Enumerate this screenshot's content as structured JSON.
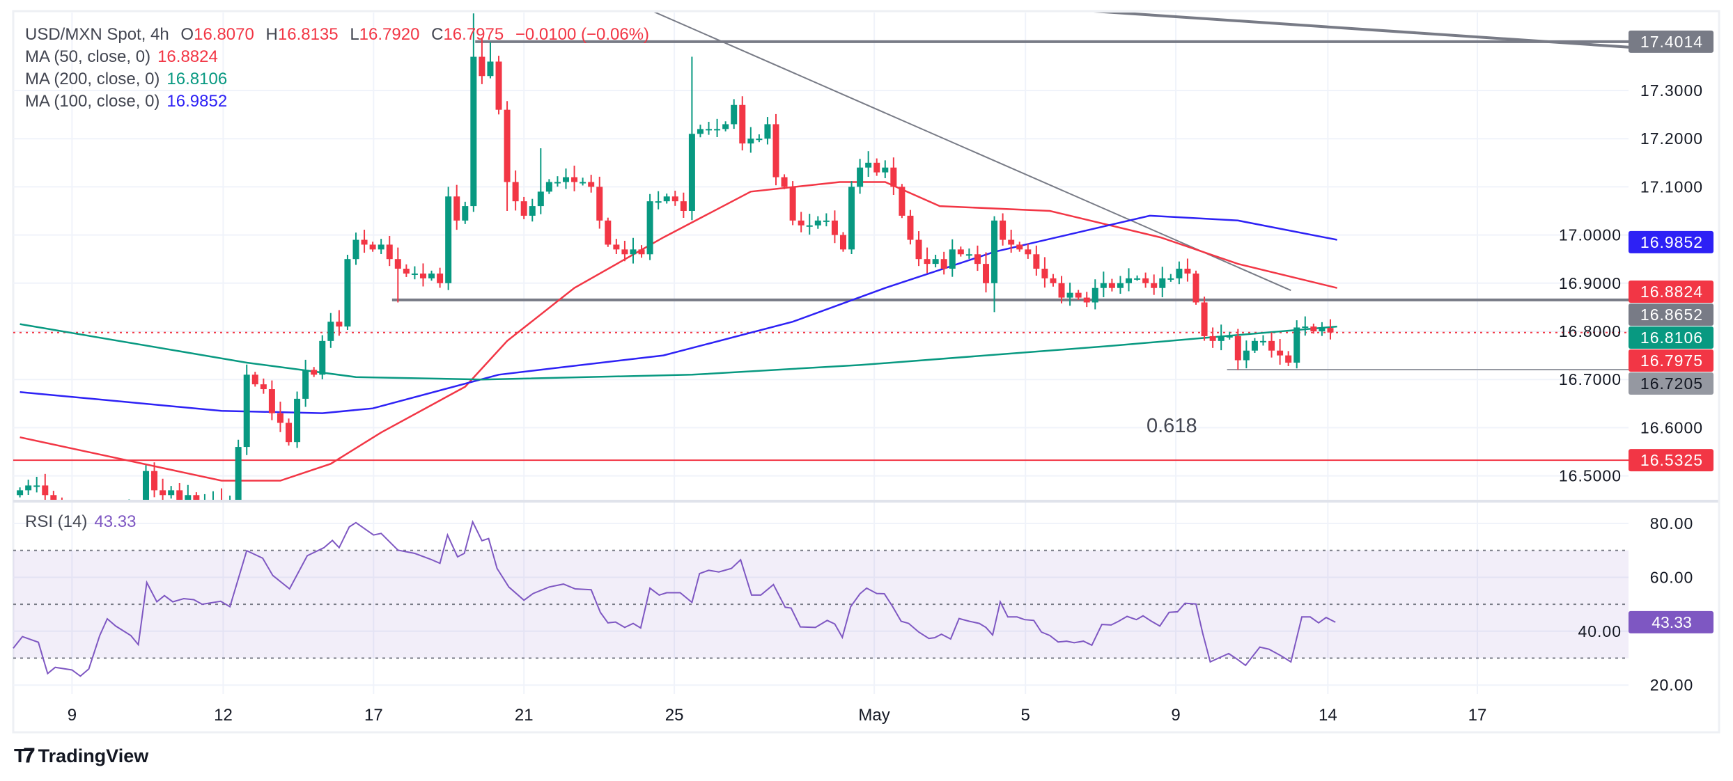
{
  "header": {
    "symbol": "USD/MXN Spot, 4h",
    "o_label": "O",
    "o": "16.8070",
    "h_label": "H",
    "h": "16.8135",
    "l_label": "L",
    "l": "16.7920",
    "c_label": "C",
    "c": "16.7975",
    "change": "−0.0100 (−0.06%)"
  },
  "indicators": [
    {
      "label": "MA (50, close, 0)",
      "value": "16.8824",
      "color": "#f23645"
    },
    {
      "label": "MA (200, close, 0)",
      "value": "16.8106",
      "color": "#089981"
    },
    {
      "label": "MA (100, close, 0)",
      "value": "16.9852",
      "color": "#2d21f5"
    }
  ],
  "rsi_legend": {
    "label": "RSI (14)",
    "value": "43.33"
  },
  "fib_label": "0.618",
  "branding": {
    "name": "TradingView"
  },
  "colors": {
    "up": "#089981",
    "down": "#f23645",
    "ma50": "#f23645",
    "ma100": "#2d21f5",
    "ma200": "#089981",
    "rsi": "#7e57c2",
    "drawing": "#787b86"
  },
  "chart_data": [
    {
      "type": "candlestick",
      "title": "USD/MXN Spot, 4h",
      "ylim": [
        16.45,
        17.47
      ],
      "y_ticks": [
        "17.3000",
        "17.2000",
        "17.1000",
        "17.0000",
        "16.9000",
        "16.8000",
        "16.7000",
        "16.6000",
        "16.5000"
      ],
      "x_ticks": [
        {
          "label": "9",
          "bar": 6.2
        },
        {
          "label": "12",
          "bar": 24.2
        },
        {
          "label": "17",
          "bar": 42.1
        },
        {
          "label": "21",
          "bar": 60
        },
        {
          "label": "25",
          "bar": 77.9
        },
        {
          "label": "May",
          "bar": 101.7
        },
        {
          "label": "5",
          "bar": 119.7
        },
        {
          "label": "9",
          "bar": 137.6
        },
        {
          "label": "14",
          "bar": 155.7
        },
        {
          "label": "17",
          "bar": 173.5
        }
      ],
      "close": [
        16.47,
        16.48,
        16.48,
        16.46,
        16.44,
        16.4,
        16.38,
        16.36,
        16.35,
        16.37,
        16.4,
        16.42,
        16.41,
        16.43,
        16.44,
        16.51,
        16.47,
        16.46,
        16.47,
        16.45,
        16.46,
        16.44,
        16.45,
        16.45,
        16.44,
        16.45,
        16.56,
        16.71,
        16.69,
        16.68,
        16.63,
        16.61,
        16.57,
        16.66,
        16.72,
        16.71,
        16.78,
        16.82,
        16.81,
        16.95,
        16.99,
        16.98,
        16.97,
        16.98,
        16.95,
        16.93,
        16.92,
        16.92,
        16.91,
        16.92,
        16.9,
        17.08,
        17.03,
        17.06,
        17.37,
        17.33,
        17.36,
        17.26,
        17.11,
        17.07,
        17.04,
        17.06,
        17.09,
        17.11,
        17.11,
        17.12,
        17.11,
        17.11,
        17.1,
        17.03,
        16.98,
        16.97,
        16.96,
        16.97,
        16.96,
        17.07,
        17.07,
        17.08,
        17.07,
        17.05,
        17.21,
        17.22,
        17.22,
        17.22,
        17.23,
        17.27,
        17.19,
        17.2,
        17.2,
        17.23,
        17.12,
        17.1,
        17.03,
        17.02,
        17.02,
        17.03,
        17.03,
        17.0,
        16.97,
        17.1,
        17.14,
        17.15,
        17.13,
        17.14,
        17.1,
        17.04,
        16.99,
        16.95,
        16.94,
        16.95,
        16.93,
        16.97,
        16.96,
        16.96,
        16.94,
        16.9,
        17.03,
        16.99,
        16.98,
        16.97,
        16.96,
        16.93,
        16.91,
        16.9,
        16.87,
        16.88,
        16.87,
        16.86,
        16.89,
        16.9,
        16.89,
        16.9,
        16.91,
        16.91,
        16.9,
        16.89,
        16.91,
        16.91,
        16.93,
        16.92,
        16.86,
        16.79,
        16.78,
        16.79,
        16.79,
        16.74,
        16.76,
        16.78,
        16.78,
        16.76,
        16.75,
        16.735,
        16.808,
        16.81,
        16.8,
        16.807,
        16.7975
      ],
      "notable_highs": {
        "54": 17.46,
        "55": 17.41,
        "56": 17.4,
        "80": 17.37,
        "62": 17.18,
        "51": 17.1
      },
      "notable_lows": {
        "116": 16.84,
        "145": 16.72,
        "45": 16.86,
        "58": 17.05
      },
      "moving_averages": [
        {
          "name": "MA 50",
          "color": "#f23645",
          "points": [
            [
              0,
              16.58
            ],
            [
              24,
              16.49
            ],
            [
              31,
              16.49
            ],
            [
              37,
              16.525
            ],
            [
              43,
              16.59
            ],
            [
              53,
              16.685
            ],
            [
              58,
              16.78
            ],
            [
              66,
              16.89
            ],
            [
              76.6,
              16.995
            ],
            [
              87,
              17.09
            ],
            [
              97.6,
              17.11
            ],
            [
              103,
              17.11
            ],
            [
              109.5,
              17.06
            ],
            [
              122.6,
              17.05
            ],
            [
              135.8,
              16.995
            ],
            [
              145,
              16.94
            ],
            [
              156.8,
              16.89
            ]
          ]
        },
        {
          "name": "MA 100",
          "color": "#2d21f5",
          "points": [
            [
              0,
              16.674
            ],
            [
              24,
              16.635
            ],
            [
              36,
              16.63
            ],
            [
              42,
              16.64
            ],
            [
              57,
              16.71
            ],
            [
              76.6,
              16.75
            ],
            [
              92,
              16.82
            ],
            [
              103,
              16.89
            ],
            [
              116,
              16.965
            ],
            [
              134.5,
              17.04
            ],
            [
              145,
              17.03
            ],
            [
              156.8,
              16.99
            ]
          ]
        },
        {
          "name": "MA 200",
          "color": "#089981",
          "points": [
            [
              0,
              16.815
            ],
            [
              27,
              16.735
            ],
            [
              40,
              16.705
            ],
            [
              55,
              16.7
            ],
            [
              80,
              16.71
            ],
            [
              100,
              16.73
            ],
            [
              130,
              16.77
            ],
            [
              156.8,
              16.81
            ]
          ]
        }
      ],
      "horizontal_levels": [
        {
          "value": "17.4014",
          "from_bar": 54.2,
          "style": "solid",
          "color": "#787b86"
        },
        {
          "value": "16.8652",
          "from_bar": 44.3,
          "style": "solid",
          "color": "#787b86"
        },
        {
          "value": "16.7205",
          "from_bar": 143.7,
          "style": "thin",
          "color": "#9598a1"
        },
        {
          "value": "16.5325",
          "from_bar": -2,
          "style": "solid",
          "color": "#f23645"
        },
        {
          "value": "16.7975",
          "from_bar": -2,
          "style": "dotted",
          "color": "#f23645"
        }
      ],
      "trend_lines": [
        {
          "from": [
            74.6,
            17.47
          ],
          "to": [
            151.3,
            16.885
          ]
        },
        {
          "from": [
            123.3,
            17.47
          ],
          "to": [
            191.5,
            17.39
          ]
        }
      ],
      "price_labels": [
        {
          "value": "17.4014",
          "bg": "#787b86",
          "fg": "#ffffff"
        },
        {
          "value": "16.9852",
          "bg": "#2d21f5",
          "fg": "#ffffff"
        },
        {
          "value": "16.8824",
          "bg": "#f23645",
          "fg": "#ffffff"
        },
        {
          "value": "16.8652",
          "bg": "#787b86",
          "fg": "#ffffff"
        },
        {
          "value": "16.8106",
          "bg": "#089981",
          "fg": "#ffffff"
        },
        {
          "value": "16.7975",
          "bg": "#f23645",
          "fg": "#ffffff"
        },
        {
          "value": "16.7205",
          "bg": "#9598a1",
          "fg": "#131722"
        },
        {
          "value": "16.5325",
          "bg": "#f23645",
          "fg": "#ffffff"
        }
      ]
    },
    {
      "type": "line",
      "title": "RSI (14)",
      "ylim": [
        15,
        87
      ],
      "y_ticks": [
        "80.00",
        "60.00",
        "40.00",
        "20.00"
      ],
      "bands": {
        "upper": 70,
        "middle": 50,
        "lower": 30
      },
      "last_value": "43.33",
      "points": [
        [
          -0.8,
          33.7
        ],
        [
          0.3,
          38
        ],
        [
          2.2,
          35.9
        ],
        [
          3.3,
          24.3
        ],
        [
          4.2,
          26.6
        ],
        [
          6.2,
          25.6
        ],
        [
          7.2,
          23.3
        ],
        [
          8.2,
          26
        ],
        [
          9.5,
          38.4
        ],
        [
          10.4,
          44.6
        ],
        [
          11.4,
          41.9
        ],
        [
          13.2,
          38.4
        ],
        [
          14.1,
          35
        ],
        [
          15.1,
          58.1
        ],
        [
          16.3,
          50.9
        ],
        [
          17.2,
          53.2
        ],
        [
          18.2,
          50.9
        ],
        [
          19.5,
          52.1
        ],
        [
          20.7,
          51.7
        ],
        [
          21.7,
          50
        ],
        [
          23.9,
          51.1
        ],
        [
          25,
          49.1
        ],
        [
          27,
          69.9
        ],
        [
          28.9,
          67.1
        ],
        [
          30.1,
          60.7
        ],
        [
          32.1,
          55.7
        ],
        [
          34.2,
          68
        ],
        [
          36.2,
          71
        ],
        [
          37.2,
          73.7
        ],
        [
          38,
          71
        ],
        [
          39.2,
          78.7
        ],
        [
          40,
          80.3
        ],
        [
          42.1,
          75.7
        ],
        [
          43,
          76.3
        ],
        [
          45,
          70.1
        ],
        [
          47,
          68.9
        ],
        [
          48.9,
          66.7
        ],
        [
          50,
          65.2
        ],
        [
          50.9,
          75.7
        ],
        [
          52.1,
          67.6
        ],
        [
          52.9,
          68.9
        ],
        [
          53.9,
          80.6
        ],
        [
          55,
          73.6
        ],
        [
          55.8,
          74.4
        ],
        [
          56.8,
          63.3
        ],
        [
          58.2,
          56.4
        ],
        [
          60,
          51.5
        ],
        [
          61.1,
          54
        ],
        [
          63,
          56.4
        ],
        [
          64.7,
          57.5
        ],
        [
          66.1,
          55.7
        ],
        [
          68,
          55.4
        ],
        [
          69.1,
          47
        ],
        [
          70,
          43.1
        ],
        [
          70.9,
          43.4
        ],
        [
          72,
          41.4
        ],
        [
          73,
          42.9
        ],
        [
          73.9,
          41.2
        ],
        [
          75,
          56
        ],
        [
          76.1,
          53.4
        ],
        [
          77,
          54.3
        ],
        [
          78.6,
          54.3
        ],
        [
          80,
          50.7
        ],
        [
          80.9,
          61.4
        ],
        [
          82,
          62.6
        ],
        [
          83.2,
          62
        ],
        [
          84.7,
          63.3
        ],
        [
          85.8,
          66.5
        ],
        [
          87.1,
          53.4
        ],
        [
          88.2,
          53.4
        ],
        [
          89.7,
          57.3
        ],
        [
          91.1,
          48.9
        ],
        [
          91.8,
          48.6
        ],
        [
          92.9,
          41.6
        ],
        [
          94.7,
          41.4
        ],
        [
          96.1,
          44
        ],
        [
          97,
          42.7
        ],
        [
          97.9,
          37.7
        ],
        [
          98.9,
          49.1
        ],
        [
          100,
          53.9
        ],
        [
          100.8,
          56
        ],
        [
          102,
          54
        ],
        [
          102.9,
          53.9
        ],
        [
          103.9,
          49.1
        ],
        [
          104.9,
          43.7
        ],
        [
          105.8,
          42.9
        ],
        [
          107,
          39.7
        ],
        [
          108.2,
          37.3
        ],
        [
          108.9,
          37.6
        ],
        [
          109.7,
          38.9
        ],
        [
          110.8,
          37.1
        ],
        [
          111.8,
          44.7
        ],
        [
          113,
          43.7
        ],
        [
          114.2,
          42.9
        ],
        [
          115,
          41.4
        ],
        [
          115.8,
          38.6
        ],
        [
          116.7,
          50.9
        ],
        [
          117.6,
          45.3
        ],
        [
          118.7,
          45.3
        ],
        [
          119.6,
          44.3
        ],
        [
          120.7,
          44
        ],
        [
          121.6,
          39.7
        ],
        [
          122.6,
          38.4
        ],
        [
          123.6,
          36
        ],
        [
          124.6,
          36.3
        ],
        [
          125.5,
          35.7
        ],
        [
          126.6,
          36.3
        ],
        [
          127.6,
          34.8
        ],
        [
          128.8,
          42.5
        ],
        [
          129.9,
          42.3
        ],
        [
          130.8,
          43.7
        ],
        [
          131.8,
          45.5
        ],
        [
          132.9,
          44.3
        ],
        [
          133.7,
          45.7
        ],
        [
          134.7,
          43.7
        ],
        [
          135.7,
          41.9
        ],
        [
          136.8,
          47
        ],
        [
          137.8,
          47.2
        ],
        [
          138.7,
          50.4
        ],
        [
          140,
          50.1
        ],
        [
          140.8,
          39.3
        ],
        [
          141.7,
          28.6
        ],
        [
          142.6,
          29.9
        ],
        [
          143.9,
          31.7
        ],
        [
          145,
          29.4
        ],
        [
          145.9,
          27.3
        ],
        [
          147.6,
          34.1
        ],
        [
          148.7,
          33.3
        ],
        [
          150,
          31.1
        ],
        [
          151.3,
          28.6
        ],
        [
          152.6,
          45.3
        ],
        [
          153.6,
          45.3
        ],
        [
          154.6,
          43.1
        ],
        [
          155.5,
          45.1
        ],
        [
          156.6,
          43.33
        ]
      ]
    }
  ]
}
